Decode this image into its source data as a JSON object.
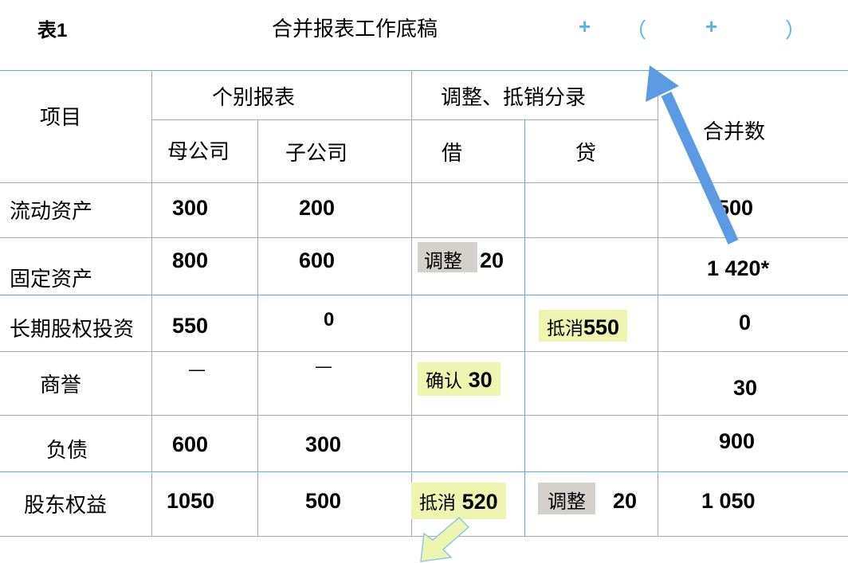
{
  "title": {
    "label": "表1",
    "text": "合并报表工作底稿",
    "formula": [
      "+",
      "（",
      "+",
      "）"
    ]
  },
  "headers": {
    "item": "项目",
    "individual": "个别报表",
    "parent": "母公司",
    "sub": "子公司",
    "adjust": "调整、抵销分录",
    "debit": "借",
    "credit": "贷",
    "consolidated": "合并数"
  },
  "rows": [
    {
      "item": "流动资产",
      "parent": "300",
      "sub": "200",
      "debit": "",
      "credit": "",
      "total": "500"
    },
    {
      "item": "固定资产",
      "parent": "800",
      "sub": "600",
      "debit_tag": "调整",
      "debit": "20",
      "credit": "",
      "total": "1 420*"
    },
    {
      "item": "长期股权投资",
      "parent": "550",
      "sub": "0",
      "debit": "",
      "credit_tag": "抵消",
      "credit": "550",
      "total": "0"
    },
    {
      "item": "商誉",
      "parent": "—",
      "sub": "—",
      "debit_tag": "确认",
      "debit": "30",
      "credit": "",
      "total": "30"
    },
    {
      "item": "负债",
      "parent": "600",
      "sub": "300",
      "debit": "",
      "credit": "",
      "total": "900"
    },
    {
      "item": "股东权益",
      "parent": "1050",
      "sub": "500",
      "debit_tag": "抵消",
      "debit": "520",
      "credit_tag": "调整",
      "credit": "20",
      "total": "1 050"
    }
  ],
  "colors": {
    "grid": "#5aaee0",
    "arrow": "#5b9be3",
    "gray_tag": "#d4d0cc",
    "yellow_tag": "#eef5b0"
  },
  "icons": [
    "arrow-up-left-icon",
    "arrow-down-left-icon"
  ]
}
